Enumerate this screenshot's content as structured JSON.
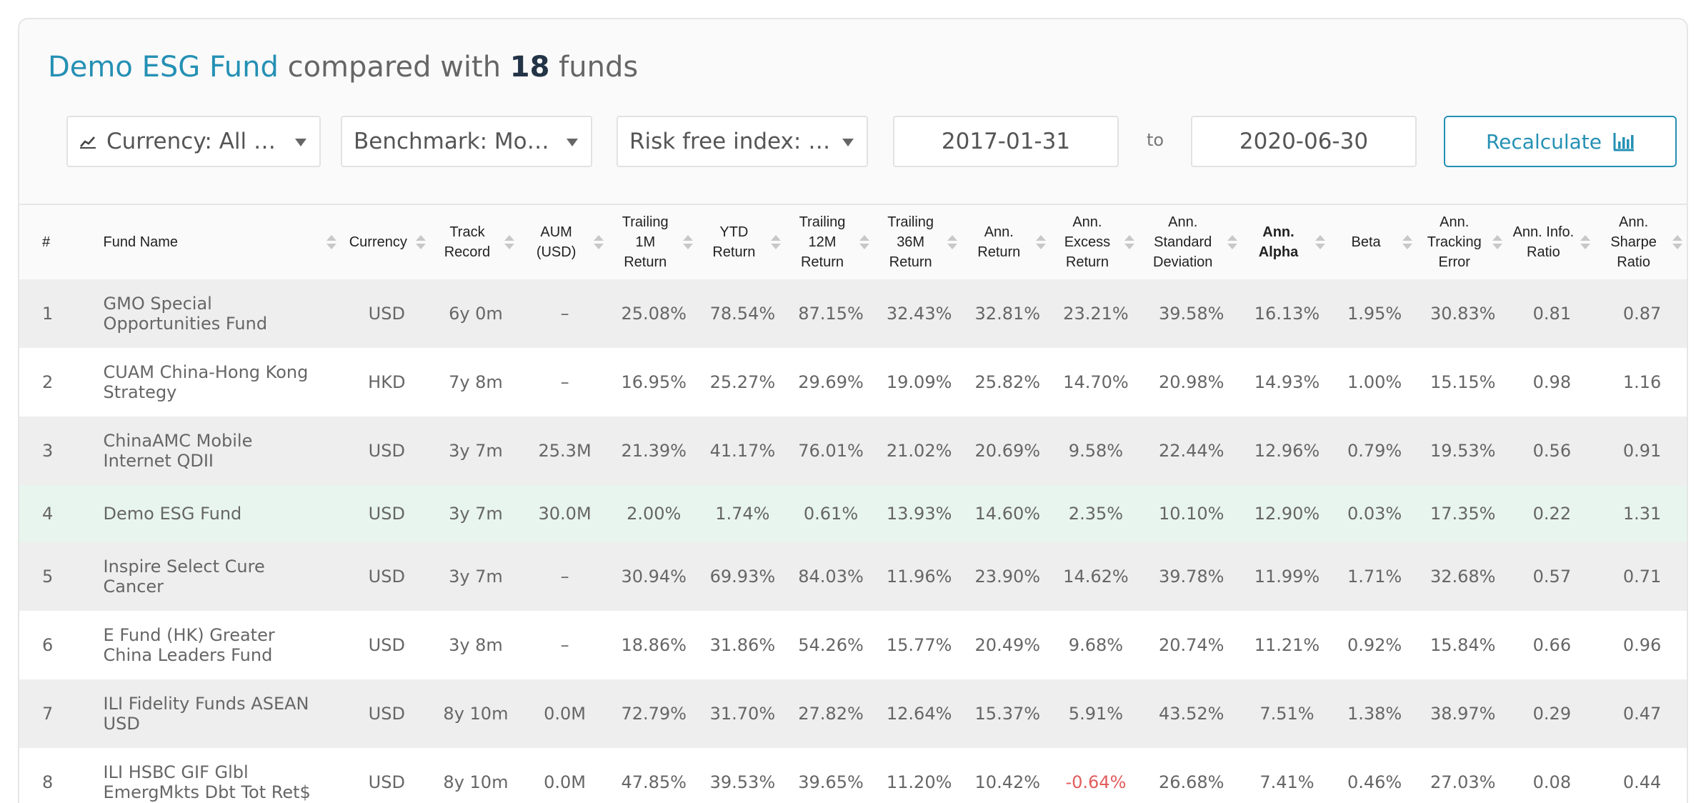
{
  "header": {
    "fund_name": "Demo ESG Fund",
    "mid_text": " compared with ",
    "count": "18",
    "end_text": " funds"
  },
  "controls": {
    "currency": "Currency: All Curr",
    "benchmark": "Benchmark: Mornin…",
    "risk_free": "Risk free index: Fixe…",
    "date_from": "2017-01-31",
    "to_label": "to",
    "date_to": "2020-06-30",
    "recalculate": "Recalculate"
  },
  "table": {
    "columns": [
      {
        "label": "#",
        "sortable": false
      },
      {
        "label": "Fund Name",
        "sortable": true
      },
      {
        "label": "Currency",
        "sortable": true
      },
      {
        "label": "Track Record",
        "sortable": true
      },
      {
        "label": "AUM (USD)",
        "sortable": true
      },
      {
        "label": "Trailing 1M Return",
        "sortable": true
      },
      {
        "label": "YTD Return",
        "sortable": true
      },
      {
        "label": "Trailing 12M Return",
        "sortable": true
      },
      {
        "label": "Trailing 36M Return",
        "sortable": true
      },
      {
        "label": "Ann. Return",
        "sortable": true
      },
      {
        "label": "Ann. Excess Return",
        "sortable": true
      },
      {
        "label": "Ann. Standard Deviation",
        "sortable": true
      },
      {
        "label": "Ann. Alpha",
        "sortable": true,
        "active": true
      },
      {
        "label": "Beta",
        "sortable": true
      },
      {
        "label": "Ann. Tracking Error",
        "sortable": true
      },
      {
        "label": "Ann. Info. Ratio",
        "sortable": true
      },
      {
        "label": "Ann. Sharpe Ratio",
        "sortable": true
      }
    ],
    "rows": [
      {
        "idx": "1",
        "name": "GMO Special Opportunities Fund",
        "currency": "USD",
        "track": "6y 0m",
        "aum": "–",
        "t1m": "25.08%",
        "ytd": "78.54%",
        "t12m": "87.15%",
        "t36m": "32.43%",
        "ann_ret": "32.81%",
        "excess": "23.21%",
        "std": "39.58%",
        "alpha": "16.13%",
        "beta": "1.95%",
        "te": "30.83%",
        "info": "0.81",
        "sharpe": "0.87"
      },
      {
        "idx": "2",
        "name": "CUAM China-Hong Kong Strategy",
        "currency": "HKD",
        "track": "7y 8m",
        "aum": "–",
        "t1m": "16.95%",
        "ytd": "25.27%",
        "t12m": "29.69%",
        "t36m": "19.09%",
        "ann_ret": "25.82%",
        "excess": "14.70%",
        "std": "20.98%",
        "alpha": "14.93%",
        "beta": "1.00%",
        "te": "15.15%",
        "info": "0.98",
        "sharpe": "1.16"
      },
      {
        "idx": "3",
        "name": "ChinaAMC Mobile Internet QDII",
        "currency": "USD",
        "track": "3y 7m",
        "aum": "25.3M",
        "t1m": "21.39%",
        "ytd": "41.17%",
        "t12m": "76.01%",
        "t36m": "21.02%",
        "ann_ret": "20.69%",
        "excess": "9.58%",
        "std": "22.44%",
        "alpha": "12.96%",
        "beta": "0.79%",
        "te": "19.53%",
        "info": "0.56",
        "sharpe": "0.91"
      },
      {
        "idx": "4",
        "name": "Demo ESG Fund",
        "currency": "USD",
        "track": "3y 7m",
        "aum": "30.0M",
        "t1m": "2.00%",
        "ytd": "1.74%",
        "t12m": "0.61%",
        "t36m": "13.93%",
        "ann_ret": "14.60%",
        "excess": "2.35%",
        "std": "10.10%",
        "alpha": "12.90%",
        "beta": "0.03%",
        "te": "17.35%",
        "info": "0.22",
        "sharpe": "1.31",
        "highlight": true
      },
      {
        "idx": "5",
        "name": "Inspire Select Cure Cancer",
        "currency": "USD",
        "track": "3y 7m",
        "aum": "–",
        "t1m": "30.94%",
        "ytd": "69.93%",
        "t12m": "84.03%",
        "t36m": "11.96%",
        "ann_ret": "23.90%",
        "excess": "14.62%",
        "std": "39.78%",
        "alpha": "11.99%",
        "beta": "1.71%",
        "te": "32.68%",
        "info": "0.57",
        "sharpe": "0.71"
      },
      {
        "idx": "6",
        "name": "E Fund (HK) Greater China Leaders Fund",
        "currency": "USD",
        "track": "3y 8m",
        "aum": "–",
        "t1m": "18.86%",
        "ytd": "31.86%",
        "t12m": "54.26%",
        "t36m": "15.77%",
        "ann_ret": "20.49%",
        "excess": "9.68%",
        "std": "20.74%",
        "alpha": "11.21%",
        "beta": "0.92%",
        "te": "15.84%",
        "info": "0.66",
        "sharpe": "0.96"
      },
      {
        "idx": "7",
        "name": "ILI Fidelity Funds ASEAN USD",
        "currency": "USD",
        "track": "8y 10m",
        "aum": "0.0M",
        "t1m": "72.79%",
        "ytd": "31.70%",
        "t12m": "27.82%",
        "t36m": "12.64%",
        "ann_ret": "15.37%",
        "excess": "5.91%",
        "std": "43.52%",
        "alpha": "7.51%",
        "beta": "1.38%",
        "te": "38.97%",
        "info": "0.29",
        "sharpe": "0.47"
      },
      {
        "idx": "8",
        "name": "ILI HSBC GIF Glbl EmergMkts Dbt Tot Ret$",
        "currency": "USD",
        "track": "8y 10m",
        "aum": "0.0M",
        "t1m": "47.85%",
        "ytd": "39.53%",
        "t12m": "39.65%",
        "t36m": "11.20%",
        "ann_ret": "10.42%",
        "excess": "-0.64%",
        "std": "26.68%",
        "alpha": "7.41%",
        "beta": "0.46%",
        "te": "27.03%",
        "info": "0.08",
        "sharpe": "0.44",
        "negative_excess": true
      }
    ]
  },
  "colors": {
    "accent": "#2590b4",
    "highlight_row": "#e8f5ee",
    "negative": "#e25c5c"
  },
  "icons": {
    "currency": "line-chart-icon",
    "recalculate": "bar-chart-icon",
    "dropdown": "caret-down-icon",
    "sort": "sort-icon"
  }
}
